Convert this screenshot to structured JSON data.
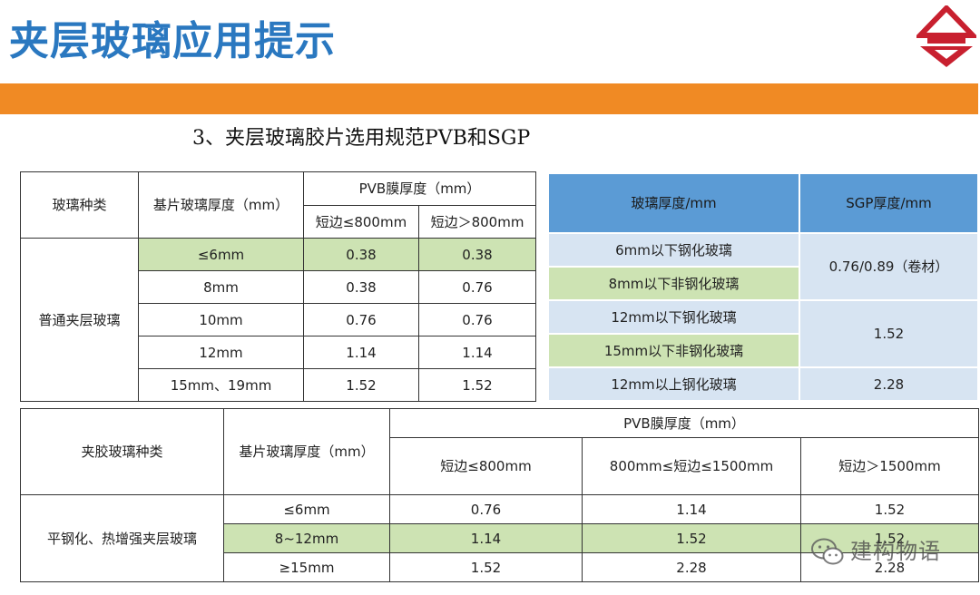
{
  "header": {
    "title": "夹层玻璃应用提示"
  },
  "subtitle": "3、夹层玻璃胶片选用规范PVB和SGP",
  "colors": {
    "title": "#2a78c0",
    "bar": "#f08a24",
    "highlight": "#cde3b3",
    "blue_head": "#5b9bd5",
    "blue_cell": "#d7e4f2",
    "logo": "#c8202f"
  },
  "table_pvb": {
    "col_type": "玻璃种类",
    "col_thickness": "基片玻璃厚度（mm）",
    "col_pvb": "PVB膜厚度（mm）",
    "sub_short": "短边≤800mm",
    "sub_long": "短边＞800mm",
    "group": "普通夹层玻璃",
    "rows": [
      {
        "thickness": "≤6mm",
        "short": "0.38",
        "long": "0.38"
      },
      {
        "thickness": "8mm",
        "short": "0.38",
        "long": "0.76"
      },
      {
        "thickness": "10mm",
        "short": "0.76",
        "long": "0.76"
      },
      {
        "thickness": "12mm",
        "short": "1.14",
        "long": "1.14"
      },
      {
        "thickness": "15mm、19mm",
        "short": "1.52",
        "long": "1.52"
      }
    ]
  },
  "table_sgp": {
    "col_glass": "玻璃厚度/mm",
    "col_sgp": "SGP厚度/mm",
    "rows": [
      {
        "glass": "6mm以下钢化玻璃"
      },
      {
        "glass": "8mm以下非钢化玻璃"
      },
      {
        "glass": "12mm以下钢化玻璃"
      },
      {
        "glass": "15mm以下非钢化玻璃"
      },
      {
        "glass": "12mm以上钢化玻璃"
      }
    ],
    "values": [
      "0.76/0.89（卷材）",
      "1.52",
      "2.28"
    ]
  },
  "table_heat": {
    "col_type": "夹胶玻璃种类",
    "col_thickness": "基片玻璃厚度（mm）",
    "col_pvb": "PVB膜厚度（mm）",
    "sub_a": "短边≤800mm",
    "sub_b": "800mm≤短边≤1500mm",
    "sub_c": "短边＞1500mm",
    "group": "平钢化、热增强夹层玻璃",
    "rows": [
      {
        "thickness": "≤6mm",
        "a": "0.76",
        "b": "1.14",
        "c": "1.52"
      },
      {
        "thickness": "8~12mm",
        "a": "1.14",
        "b": "1.52",
        "c": "1.52"
      },
      {
        "thickness": "≥15mm",
        "a": "1.52",
        "b": "2.28",
        "c": "2.28"
      }
    ]
  },
  "watermark": {
    "text": "建构物语",
    "icon": "wechat-icon"
  }
}
